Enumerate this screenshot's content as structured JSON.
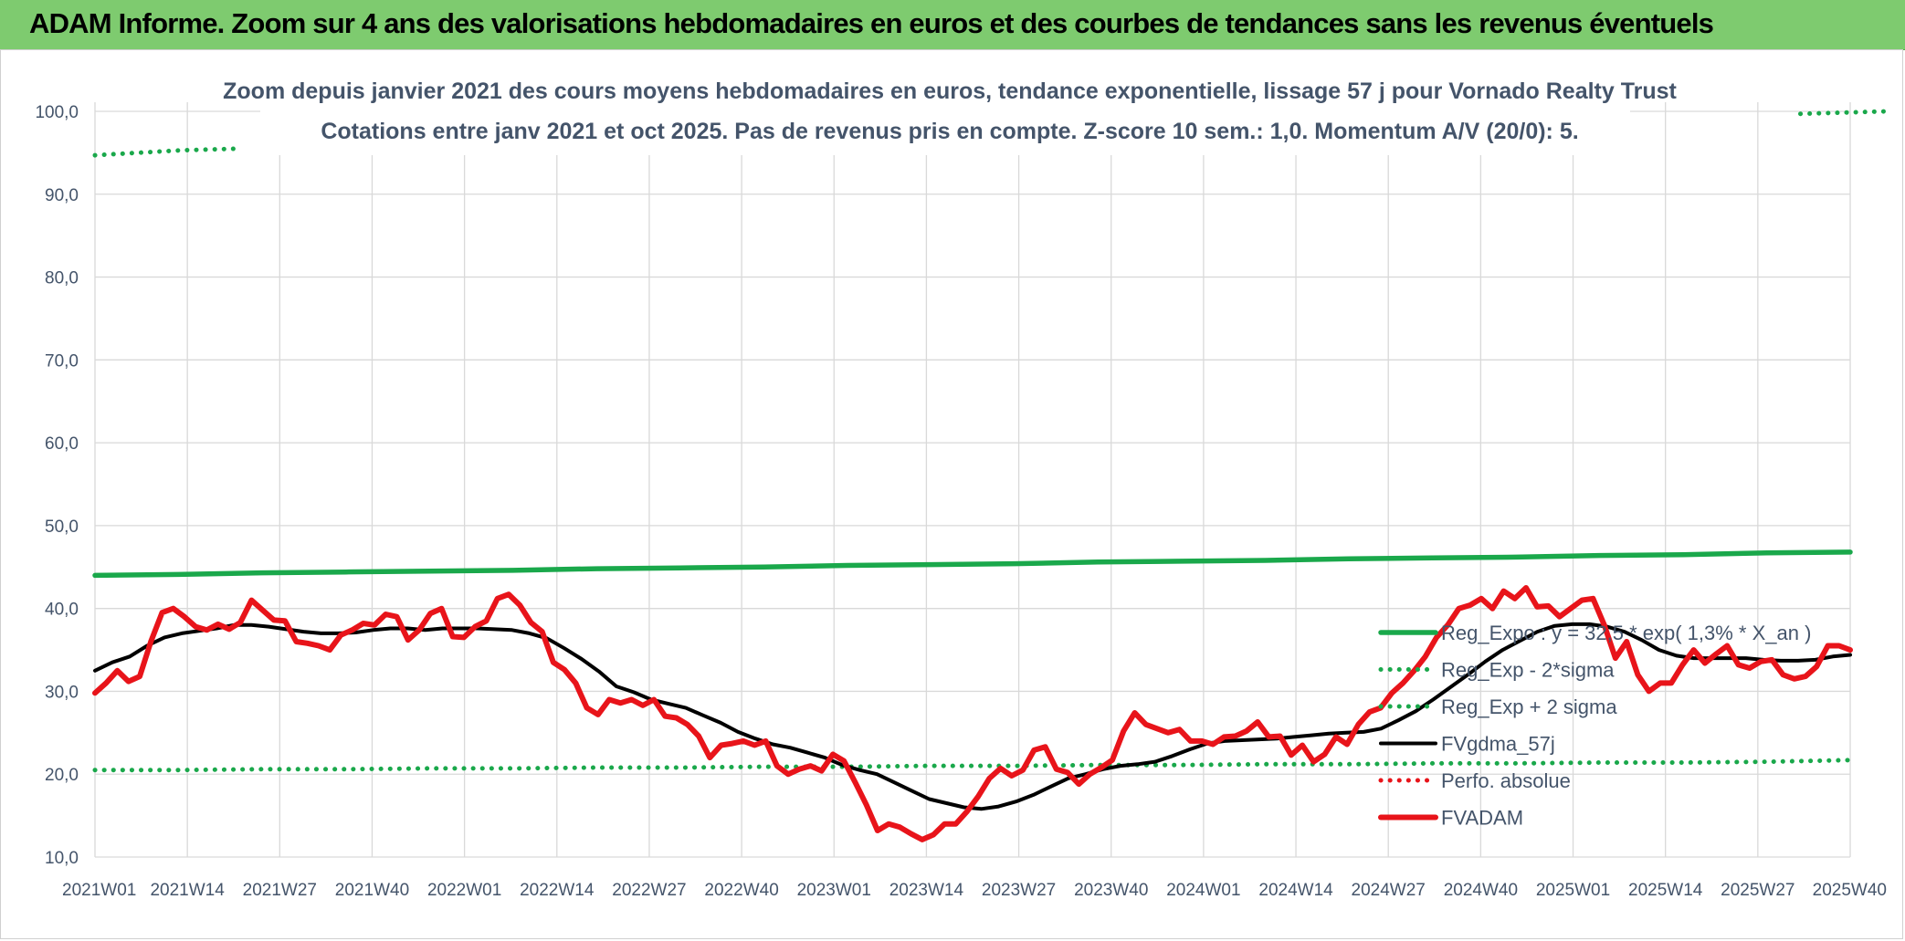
{
  "banner": {
    "title": "ADAM Informe. Zoom sur 4 ans des valorisations hebdomadaires en euros et des courbes de tendances sans les revenus éventuels"
  },
  "colors": {
    "banner_bg": "#7ecb6f",
    "reg_expo": "#1aa84b",
    "fvadam": "#e8141a",
    "fvgdma": "#000000",
    "perfo": "#e8141a",
    "grid": "#d9d9d9",
    "text": "#44546a"
  },
  "chart_data": {
    "type": "line",
    "title": "Zoom depuis janvier 2021 des cours moyens hebdomadaires en euros, tendance exponentielle, lissage 57 j pour Vornado Realty Trust",
    "subtitle": "Cotations entre janv 2021 et oct 2025. Pas de revenus pris en compte. Z-score 10 sem.: 1,0. Momentum A/V (20/0): 5.",
    "xlabel": "",
    "ylabel": "",
    "ylim": [
      10,
      100
    ],
    "yticks": [
      "10,0",
      "20,0",
      "30,0",
      "40,0",
      "50,0",
      "60,0",
      "70,0",
      "80,0",
      "90,0",
      "100,0"
    ],
    "x_tick_labels": [
      "2021W01",
      "2021W14",
      "2021W27",
      "2021W40",
      "2022W01",
      "2022W14",
      "2022W27",
      "2022W40",
      "2023W01",
      "2023W14",
      "2023W27",
      "2023W40",
      "2024W01",
      "2024W14",
      "2024W27",
      "2024W40",
      "2025W01",
      "2025W14",
      "2025W27",
      "2025W40"
    ],
    "grid": true,
    "legend_placement": "right",
    "x_points_per_tick": 13,
    "series": [
      {
        "name": "Reg_Expo : y = 32,5 * exp( 1,3% *  X_an )",
        "style": "solid-thick",
        "color": "#1aa84b",
        "values": [
          44.0,
          44.1,
          44.3,
          44.4,
          44.5,
          44.6,
          44.8,
          44.9,
          45.0,
          45.2,
          45.3,
          45.4,
          45.6,
          45.7,
          45.8,
          46.0,
          46.1,
          46.2,
          46.4,
          46.5,
          46.7,
          46.8
        ]
      },
      {
        "name": "Reg_Exp - 2*sigma",
        "style": "dotted",
        "color": "#1aa84b",
        "values": [
          20.5,
          20.5,
          20.6,
          20.6,
          20.7,
          20.7,
          20.8,
          20.8,
          20.9,
          20.9,
          21.0,
          21.0,
          21.1,
          21.1,
          21.2,
          21.2,
          21.3,
          21.3,
          21.4,
          21.4,
          21.5,
          21.7
        ]
      },
      {
        "name": "Reg_Exp + 2 sigma",
        "style": "dotted",
        "color": "#1aa84b",
        "segments": [
          {
            "start_week": 0,
            "values": [
              94.7,
              94.9,
              95.1,
              95.3,
              95.4,
              95.5
            ]
          },
          {
            "start_week": 240,
            "values": [
              99.7,
              99.8,
              99.9,
              100.0
            ]
          }
        ]
      },
      {
        "name": "FVgdma_57j",
        "style": "solid",
        "color": "#000000",
        "values": [
          32.5,
          33.5,
          34.2,
          35.5,
          36.5,
          37.0,
          37.3,
          37.6,
          38.0,
          38.0,
          37.8,
          37.5,
          37.2,
          37.0,
          37.0,
          37.1,
          37.4,
          37.6,
          37.6,
          37.4,
          37.6,
          37.6,
          37.6,
          37.5,
          37.4,
          37.0,
          36.4,
          35.2,
          33.9,
          32.4,
          30.6,
          29.9,
          29.0,
          28.5,
          28.0,
          27.1,
          26.2,
          25.1,
          24.3,
          23.6,
          23.2,
          22.6,
          22.0,
          21.1,
          20.5,
          20.0,
          19.0,
          18.0,
          17.0,
          16.5,
          16.0,
          15.8,
          16.1,
          16.7,
          17.5,
          18.5,
          19.5,
          20.0,
          20.6,
          21.0,
          21.2,
          21.5,
          22.2,
          23.0,
          23.7,
          24.0,
          24.1,
          24.2,
          24.3,
          24.5,
          24.7,
          24.9,
          25.0,
          25.1,
          25.5,
          26.5,
          27.6,
          29.0,
          30.5,
          32.0,
          33.6,
          35.0,
          36.1,
          37.2,
          37.9,
          38.1,
          38.1,
          37.8,
          37.2,
          36.2,
          35.0,
          34.3,
          34.0,
          34.0,
          34.0,
          34.0,
          33.8,
          33.7,
          33.7,
          33.8,
          34.2,
          34.4
        ]
      },
      {
        "name": "Perfo. absolue",
        "style": "dotted",
        "color": "#e8141a",
        "values": []
      },
      {
        "name": "FVADAM",
        "style": "solid-thick",
        "color": "#e8141a",
        "values": [
          29.8,
          31.0,
          32.5,
          31.2,
          31.8,
          36.0,
          39.5,
          40.0,
          39.0,
          37.8,
          37.4,
          38.1,
          37.5,
          38.3,
          41.0,
          39.8,
          38.6,
          38.5,
          36.0,
          35.8,
          35.5,
          35.0,
          36.8,
          37.4,
          38.2,
          38.0,
          39.3,
          39.0,
          36.2,
          37.4,
          39.4,
          40.0,
          36.6,
          36.5,
          37.8,
          38.5,
          41.2,
          41.7,
          40.4,
          38.3,
          37.2,
          33.5,
          32.6,
          31.0,
          28.0,
          27.2,
          29.0,
          28.6,
          29.0,
          28.3,
          29.0,
          27.0,
          26.8,
          26.0,
          24.6,
          22.0,
          23.5,
          23.7,
          24.0,
          23.5,
          24.0,
          21.0,
          20.0,
          20.6,
          21.0,
          20.4,
          22.4,
          21.6,
          19.0,
          16.3,
          13.2,
          14.0,
          13.6,
          12.8,
          12.1,
          12.7,
          14.0,
          14.0,
          15.5,
          17.3,
          19.5,
          20.7,
          19.8,
          20.5,
          22.9,
          23.3,
          20.6,
          20.2,
          18.8,
          20.0,
          20.8,
          21.7,
          25.2,
          27.4,
          26.0,
          25.5,
          25.0,
          25.4,
          24.0,
          24.0,
          23.6,
          24.5,
          24.6,
          25.2,
          26.3,
          24.5,
          24.6,
          22.3,
          23.5,
          21.5,
          22.4,
          24.5,
          23.6,
          26.0,
          27.5,
          28.0,
          29.8,
          31.0,
          32.5,
          34.2,
          36.5,
          38.0,
          40.0,
          40.4,
          41.2,
          40.0,
          42.1,
          41.2,
          42.5,
          40.2,
          40.3,
          39.0,
          40.0,
          41.0,
          41.2,
          38.0,
          34.0,
          36.0,
          32.0,
          30.0,
          31.0,
          31.0,
          33.2,
          35.0,
          33.4,
          34.5,
          35.5,
          33.2,
          32.8,
          33.6,
          33.8,
          32.0,
          31.5,
          31.8,
          33.0,
          35.5,
          35.5,
          35.0
        ]
      }
    ]
  }
}
